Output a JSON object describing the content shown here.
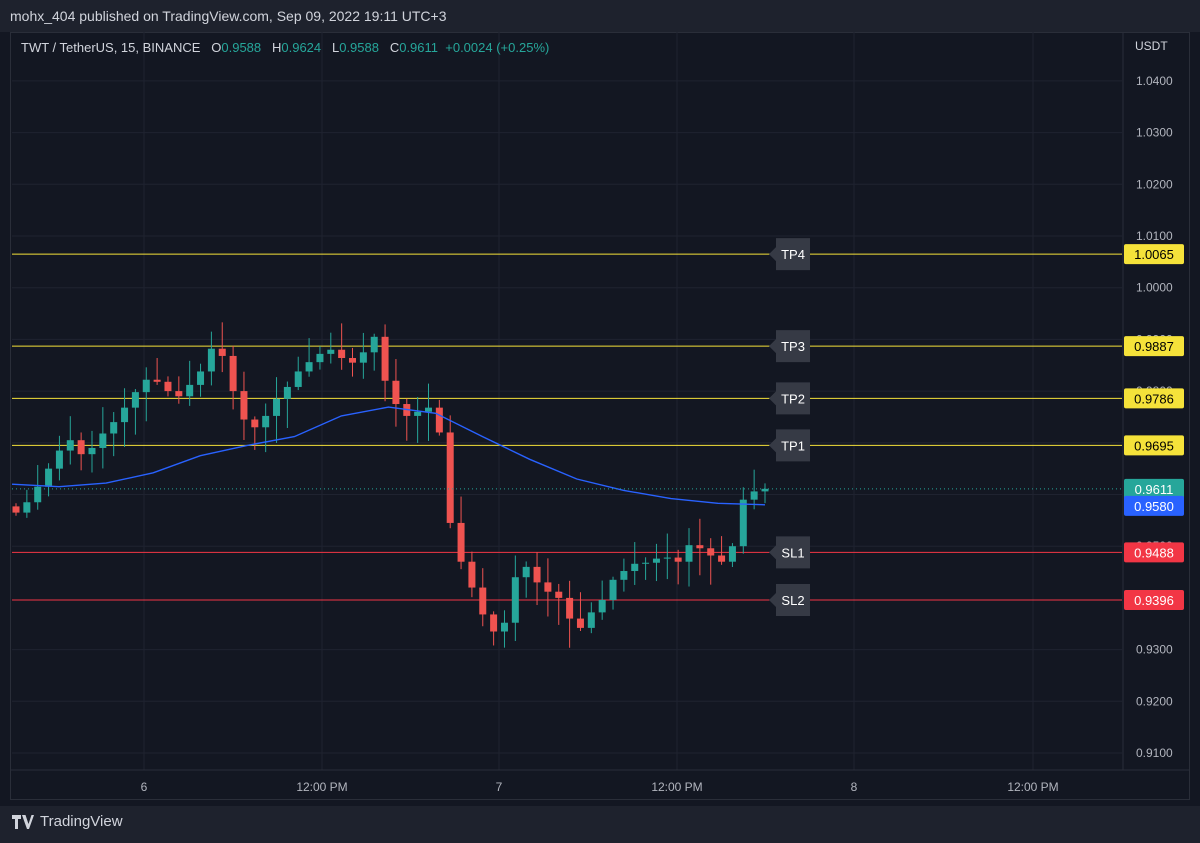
{
  "header": {
    "text": "mohx_404 published on TradingView.com, Sep 09, 2022 19:11 UTC+3"
  },
  "legend": {
    "symbol": "TWT / TetherUS, 15, BINANCE",
    "o_label": "O",
    "o": "0.9588",
    "h_label": "H",
    "h": "0.9624",
    "l_label": "L",
    "l": "0.9588",
    "c_label": "C",
    "c": "0.9611",
    "change": "+0.0024 (+0.25%)"
  },
  "footer": {
    "brand": "TradingView"
  },
  "colors": {
    "up": "#26a69a",
    "down": "#ef5350",
    "tp_line": "#f5e23a",
    "sl_line": "#f23645",
    "ma": "#2962ff",
    "background": "#131722"
  },
  "chart_data": {
    "type": "candlestick",
    "currency": "USDT",
    "y_ticks": [
      "1.0400",
      "1.0300",
      "1.0200",
      "1.0100",
      "1.0000",
      "0.9900",
      "0.9800",
      "0.9700",
      "0.9600",
      "0.9500",
      "0.9300",
      "0.9200",
      "0.9100"
    ],
    "x_ticks": [
      "6",
      "12:00 PM",
      "7",
      "12:00 PM",
      "8",
      "12:00 PM"
    ],
    "ylim": [
      0.9067,
      1.044
    ],
    "levels": [
      {
        "name": "TP4",
        "value": "1.0065",
        "kind": "tp"
      },
      {
        "name": "TP3",
        "value": "0.9887",
        "kind": "tp"
      },
      {
        "name": "TP2",
        "value": "0.9786",
        "kind": "tp"
      },
      {
        "name": "TP1",
        "value": "0.9695",
        "kind": "tp"
      },
      {
        "name": "SL1",
        "value": "0.9488",
        "kind": "sl"
      },
      {
        "name": "SL2",
        "value": "0.9396",
        "kind": "sl"
      }
    ],
    "last_price": "0.9611",
    "ma_price": "0.9580",
    "series": [
      {
        "name": "TWT/USDT 15m close (approx.)",
        "values": [
          0.9565,
          0.9585,
          0.9615,
          0.965,
          0.9685,
          0.9705,
          0.9678,
          0.969,
          0.9718,
          0.974,
          0.9768,
          0.9798,
          0.9822,
          0.9818,
          0.98,
          0.979,
          0.9812,
          0.9838,
          0.9882,
          0.9868,
          0.98,
          0.9745,
          0.973,
          0.9752,
          0.9785,
          0.9808,
          0.9838,
          0.9856,
          0.9872,
          0.988,
          0.9864,
          0.9855,
          0.9875,
          0.9905,
          0.982,
          0.9775,
          0.9752,
          0.976,
          0.9768,
          0.972,
          0.9545,
          0.947,
          0.942,
          0.9368,
          0.9335,
          0.9352,
          0.944,
          0.946,
          0.943,
          0.9412,
          0.94,
          0.936,
          0.9342,
          0.9372,
          0.9396,
          0.9435,
          0.9452,
          0.9466,
          0.9468,
          0.9476,
          0.9478,
          0.947,
          0.9502,
          0.9496,
          0.9482,
          0.947,
          0.95,
          0.959,
          0.9606,
          0.9611
        ]
      },
      {
        "name": "MA",
        "values": [
          0.962,
          0.9615,
          0.9622,
          0.9642,
          0.9675,
          0.9695,
          0.9712,
          0.9752,
          0.9769,
          0.9757,
          0.9712,
          0.9668,
          0.963,
          0.9608,
          0.9592,
          0.9583,
          0.958
        ]
      }
    ]
  }
}
